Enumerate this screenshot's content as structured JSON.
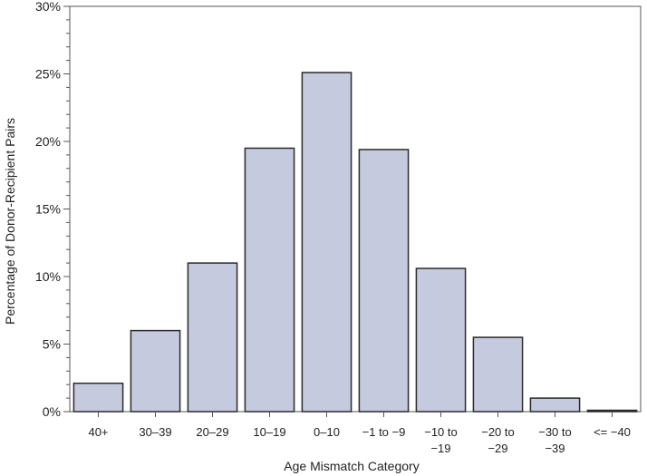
{
  "chart_data": {
    "type": "bar",
    "xlabel": "Age Mismatch Category",
    "ylabel": "Percentage of Donor-Recipient Pairs",
    "ylim": [
      0,
      30
    ],
    "yticks": [
      0,
      5,
      10,
      15,
      20,
      25,
      30
    ],
    "ytick_labels": [
      "0%",
      "5%",
      "10%",
      "15%",
      "20%",
      "25%",
      "30%"
    ],
    "grid": false,
    "categories": [
      [
        "40+"
      ],
      [
        "30–39"
      ],
      [
        "20–29"
      ],
      [
        "10–19"
      ],
      [
        "0–10"
      ],
      [
        "−1 to −9"
      ],
      [
        "−10 to",
        "−19"
      ],
      [
        "−20 to",
        "−29"
      ],
      [
        "−30 to",
        "−39"
      ],
      [
        "<= −40"
      ]
    ],
    "values": [
      2.1,
      6.0,
      11.0,
      19.5,
      25.1,
      19.4,
      10.6,
      5.5,
      1.0,
      0.1
    ],
    "colors": {
      "bar_fill": "#c5cade",
      "bar_stroke": "#2b2b2b",
      "axis": "#555555"
    }
  }
}
